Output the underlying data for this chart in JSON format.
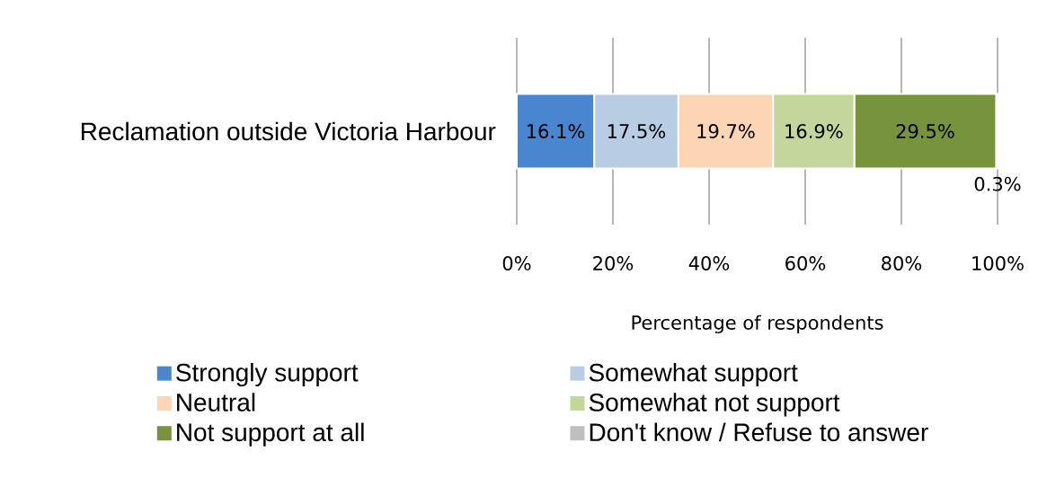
{
  "chart_data": {
    "type": "bar",
    "orientation": "horizontal",
    "stacked": true,
    "categories": [
      "Reclamation outside Victoria Harbour"
    ],
    "series": [
      {
        "name": "Strongly support",
        "color": "#4a86d0",
        "values": [
          16.1
        ],
        "value_labels": [
          "16.1%"
        ]
      },
      {
        "name": "Somewhat support",
        "color": "#b8cce4",
        "values": [
          17.5
        ],
        "value_labels": [
          "17.5%"
        ]
      },
      {
        "name": "Neutral",
        "color": "#fcd5b5",
        "values": [
          19.7
        ],
        "value_labels": [
          "19.7%"
        ]
      },
      {
        "name": "Somewhat not support",
        "color": "#c3d69b",
        "values": [
          16.9
        ],
        "value_labels": [
          "16.9%"
        ]
      },
      {
        "name": "Not support at all",
        "color": "#77933c",
        "values": [
          29.5
        ],
        "value_labels": [
          "29.5%"
        ]
      },
      {
        "name": "Don't know / Refuse to answer",
        "color": "#bfbfbf",
        "values": [
          0.3
        ],
        "value_labels": [
          "0.3%"
        ]
      }
    ],
    "xlabel": "Percentage of respondents",
    "xlim": [
      0,
      100
    ],
    "xticks": [
      {
        "value": 0,
        "label": "0%"
      },
      {
        "value": 20,
        "label": "20%"
      },
      {
        "value": 40,
        "label": "40%"
      },
      {
        "value": 60,
        "label": "60%"
      },
      {
        "value": 80,
        "label": "80%"
      },
      {
        "value": 100,
        "label": "100%"
      }
    ],
    "grid": "x",
    "legend": "bottom"
  }
}
